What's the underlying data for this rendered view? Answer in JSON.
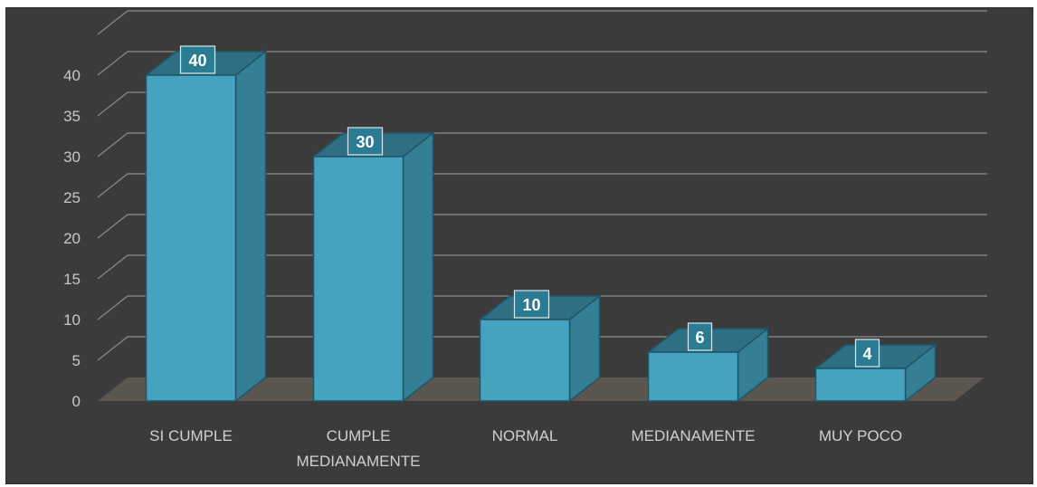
{
  "chart_data": {
    "type": "bar",
    "style": "3d-column",
    "categories": [
      "SI CUMPLE",
      "CUMPLE MEDIANAMENTE",
      "NORMAL",
      "MEDIANAMENTE",
      "MUY POCO"
    ],
    "category_lines": [
      [
        "SI CUMPLE"
      ],
      [
        "CUMPLE",
        "MEDIANAMENTE"
      ],
      [
        "NORMAL"
      ],
      [
        "MEDIANAMENTE"
      ],
      [
        "MUY POCO"
      ]
    ],
    "values": [
      40,
      30,
      10,
      6,
      4
    ],
    "ylim": [
      0,
      40
    ],
    "yticks": [
      0,
      5,
      10,
      15,
      20,
      25,
      30,
      35,
      40
    ],
    "title": "",
    "xlabel": "",
    "ylabel": "",
    "grid": true,
    "legend": "none",
    "data_labels": true,
    "colors": {
      "background": "#3b3b3b",
      "floor": "#5b5750",
      "gridline": "#8c8c8c",
      "bar_front": "#46a3c0",
      "bar_side": "#357f96",
      "bar_top": "#2f6f83",
      "bar_edge": "#1f5566",
      "label_box": "#2b7c92"
    }
  }
}
